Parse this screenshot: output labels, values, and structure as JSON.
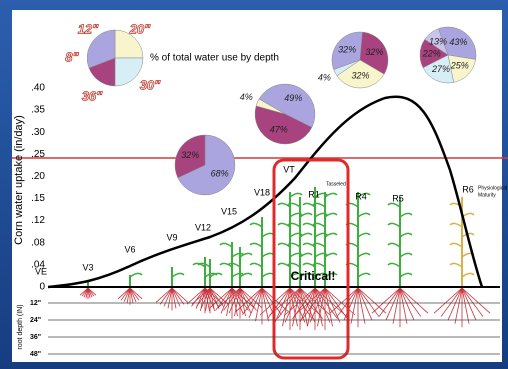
{
  "y_axis": {
    "label": "Corn water uptake (in/day)",
    "ticks": [
      ".40",
      ".35",
      ".30",
      ".25",
      ".20",
      ".15",
      ".12",
      ".08",
      ".04",
      "0"
    ]
  },
  "legend": {
    "title": "% of total water use by depth",
    "depths": [
      "12\"",
      "20\"",
      "8\"",
      "36\"",
      "30\""
    ]
  },
  "pies": [
    {
      "values": [
        68,
        32
      ],
      "labels": [
        "68%",
        "32%"
      ],
      "colors": [
        "#aaa5de",
        "#a8437f"
      ]
    },
    {
      "values": [
        49,
        47,
        4
      ],
      "labels": [
        "49%",
        "47%",
        "4%"
      ],
      "colors": [
        "#aaa5de",
        "#a8437f",
        "#f8f4cc"
      ]
    },
    {
      "values": [
        32,
        32,
        32,
        4
      ],
      "labels": [
        "32%",
        "32%",
        "32%",
        "4%"
      ],
      "colors": [
        "#aaa5de",
        "#a8437f",
        "#f8f4cc",
        "#d8eef6"
      ]
    },
    {
      "values": [
        43,
        25,
        27,
        22,
        13
      ],
      "labels": [
        "43%",
        "25%",
        "27%",
        "22%",
        "13%"
      ],
      "colors": [
        "#aaa5de",
        "#f8f4cc",
        "#d8eef6",
        "#a8437f",
        "#c9c4ea"
      ]
    }
  ],
  "stages": [
    "VE",
    "V3",
    "V6",
    "V9",
    "V12",
    "V15",
    "V18",
    "VT",
    "R1",
    "R4",
    "R5",
    "R6"
  ],
  "notes": {
    "tasseled": "Tasseled",
    "maturity": [
      "Physiological",
      "Maturity"
    ]
  },
  "critical": "Critical!",
  "root_axis": {
    "label": "root depth (IN)",
    "ticks": [
      "12\"",
      "24\"",
      "36\"",
      "48\""
    ]
  }
}
